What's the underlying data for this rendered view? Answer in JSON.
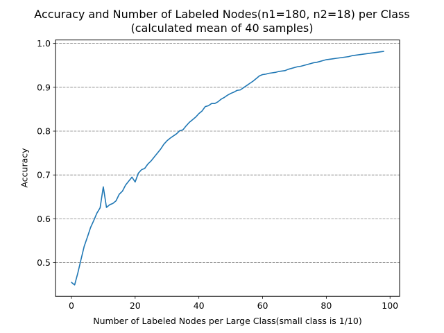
{
  "chart_data": {
    "type": "line",
    "title": "Accuracy and Number of Labeled Nodes(n1=180, n2=18) per Class",
    "subtitle": "(calculated mean of 40 samples)",
    "xlabel": "Number of Labeled Nodes per Large Class(small class is 1/10)",
    "ylabel": "Accuracy",
    "xlim": [
      -5,
      103
    ],
    "ylim": [
      0.423,
      1.008
    ],
    "xticks": [
      0,
      20,
      40,
      60,
      80,
      100
    ],
    "yticks": [
      0.5,
      0.6,
      0.7,
      0.8,
      0.9,
      1.0
    ],
    "xtick_labels": [
      "0",
      "20",
      "40",
      "60",
      "80",
      "100"
    ],
    "ytick_labels": [
      "0.5",
      "0.6",
      "0.7",
      "0.8",
      "0.9",
      "1.0"
    ],
    "grid": "horizontal dashed",
    "colors": {
      "line": "#1f77b4",
      "grid": "#808080"
    },
    "series": [
      {
        "x": [
          0,
          1,
          2,
          3,
          4,
          5,
          6,
          7,
          8,
          9,
          10,
          11,
          12,
          13,
          14,
          15,
          16,
          17,
          18,
          19,
          20,
          21,
          22,
          23,
          24,
          25,
          26,
          27,
          28,
          29,
          30,
          31,
          32,
          33,
          34,
          35,
          36,
          37,
          38,
          39,
          40,
          41,
          42,
          43,
          44,
          45,
          46,
          47,
          48,
          49,
          50,
          51,
          52,
          53,
          54,
          55,
          56,
          57,
          58,
          59,
          60,
          61,
          62,
          63,
          64,
          65,
          66,
          67,
          68,
          69,
          70,
          71,
          72,
          73,
          74,
          75,
          76,
          77,
          78,
          79,
          80,
          81,
          82,
          83,
          84,
          85,
          86,
          87,
          88,
          89,
          90,
          91,
          92,
          93,
          94,
          95,
          96,
          97,
          98
        ],
        "values": [
          0.455,
          0.449,
          0.476,
          0.507,
          0.537,
          0.558,
          0.58,
          0.596,
          0.613,
          0.625,
          0.673,
          0.626,
          0.632,
          0.635,
          0.641,
          0.656,
          0.663,
          0.677,
          0.686,
          0.695,
          0.684,
          0.704,
          0.712,
          0.715,
          0.725,
          0.732,
          0.741,
          0.75,
          0.759,
          0.77,
          0.778,
          0.784,
          0.789,
          0.794,
          0.801,
          0.803,
          0.812,
          0.82,
          0.826,
          0.832,
          0.84,
          0.846,
          0.856,
          0.858,
          0.863,
          0.863,
          0.867,
          0.873,
          0.877,
          0.882,
          0.886,
          0.889,
          0.893,
          0.894,
          0.899,
          0.904,
          0.909,
          0.914,
          0.92,
          0.926,
          0.929,
          0.93,
          0.932,
          0.933,
          0.934,
          0.936,
          0.937,
          0.938,
          0.941,
          0.943,
          0.945,
          0.947,
          0.948,
          0.95,
          0.952,
          0.954,
          0.956,
          0.957,
          0.959,
          0.961,
          0.963,
          0.964,
          0.965,
          0.966,
          0.967,
          0.968,
          0.969,
          0.97,
          0.972,
          0.973,
          0.974,
          0.975,
          0.976,
          0.977,
          0.978,
          0.979,
          0.98,
          0.981,
          0.982
        ]
      }
    ]
  }
}
